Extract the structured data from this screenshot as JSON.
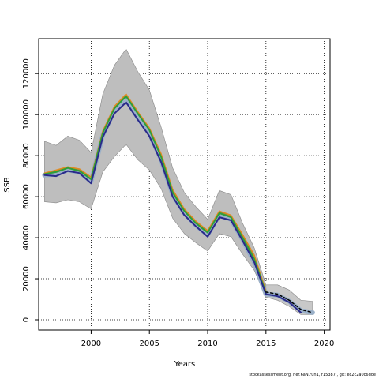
{
  "chart_data": {
    "type": "line",
    "title": "",
    "xlabel": "Years",
    "ylabel": "SSB",
    "xlim": [
      1995.5,
      2020.5
    ],
    "ylim": [
      -5000,
      137000
    ],
    "x_ticks": [
      2000,
      2005,
      2010,
      2015,
      2020
    ],
    "y_ticks": [
      0,
      20000,
      40000,
      60000,
      80000,
      100000,
      120000
    ],
    "grid": true,
    "legend": "none",
    "confidence_band": {
      "x": [
        1996,
        1997,
        1998,
        1999,
        2000,
        2001,
        2002,
        2003,
        2004,
        2005,
        2006,
        2007,
        2008,
        2009,
        2010,
        2011,
        2012,
        2013,
        2014,
        2015
      ],
      "upper": [
        87000,
        85000,
        89500,
        87500,
        81500,
        110000,
        124000,
        132000,
        121000,
        112000,
        94000,
        74000,
        62000,
        55000,
        49000,
        63000,
        61000,
        47000,
        35000,
        17000
      ],
      "lower": [
        57500,
        57000,
        58500,
        57500,
        54000,
        72000,
        79500,
        85500,
        78000,
        73000,
        64000,
        49500,
        42000,
        37500,
        33500,
        42000,
        40500,
        32000,
        24000,
        11000
      ]
    },
    "projection_band": {
      "x": [
        2015,
        2016,
        2017,
        2018,
        2019
      ],
      "upper": [
        17000,
        17000,
        14500,
        9500,
        9000
      ],
      "lower": [
        11000,
        9500,
        6500,
        2500,
        2500
      ]
    },
    "series": [
      {
        "color": "#9ab0c8",
        "width": 6,
        "x": [
          1996,
          1997,
          1998,
          1999,
          2000,
          2001,
          2002,
          2003,
          2004,
          2005,
          2006,
          2007,
          2008,
          2009,
          2010,
          2011,
          2012,
          2013,
          2014,
          2015,
          2016,
          2017,
          2018,
          2019
        ],
        "values": [
          70500,
          71000,
          73000,
          72000,
          67500,
          90000,
          102000,
          107500,
          98500,
          91000,
          78000,
          61000,
          52000,
          46000,
          41500,
          51000,
          49000,
          39000,
          28000,
          12500,
          12000,
          9000,
          4500,
          3500
        ]
      },
      {
        "color": "#8a8a35",
        "x": [
          1996,
          1997,
          1998,
          1999,
          2000,
          2001,
          2002,
          2003,
          2004,
          2005,
          2006,
          2007,
          2008,
          2009,
          2010,
          2011,
          2012,
          2013,
          2014,
          2015
        ],
        "values": [
          71000,
          72500,
          74500,
          73000,
          69500,
          91500,
          103500,
          109500,
          101000,
          93000,
          80500,
          63000,
          53500,
          47500,
          43000,
          52500,
          50500,
          41000,
          31000,
          13500
        ]
      },
      {
        "color": "#e08a20",
        "x": [
          1996,
          1997,
          1998,
          1999,
          2000,
          2001,
          2002,
          2003,
          2004,
          2005,
          2006,
          2007,
          2008,
          2009,
          2010,
          2011,
          2012,
          2013,
          2014,
          2015
        ],
        "values": [
          71500,
          73000,
          74500,
          73500,
          69500,
          92000,
          104000,
          110000,
          101500,
          93500,
          81000,
          63500,
          54000,
          48000,
          43500,
          53000,
          51000,
          41500,
          31500,
          14000
        ]
      },
      {
        "color": "#2e9e3a",
        "width": 2,
        "x": [
          1996,
          1997,
          1998,
          1999,
          2000,
          2001,
          2002,
          2003,
          2004,
          2005,
          2006,
          2007,
          2008,
          2009,
          2010,
          2011,
          2012,
          2013,
          2014,
          2015
        ],
        "values": [
          71000,
          72000,
          74000,
          72500,
          68500,
          91000,
          103000,
          109000,
          100500,
          92500,
          79500,
          62000,
          53000,
          47000,
          42500,
          52000,
          50000,
          40000,
          29500,
          13000
        ]
      },
      {
        "color": "#2a2a8a",
        "width": 2,
        "x": [
          1996,
          1997,
          1998,
          1999,
          2000,
          2001,
          2002,
          2003,
          2004,
          2005,
          2006,
          2007,
          2008,
          2009,
          2010,
          2011,
          2012,
          2013,
          2014,
          2015,
          2016,
          2017,
          2018
        ],
        "values": [
          70500,
          70000,
          72500,
          71500,
          66500,
          89000,
          100500,
          106000,
          97500,
          89500,
          77000,
          60000,
          51000,
          45500,
          40500,
          50000,
          48500,
          38500,
          28000,
          12500,
          11500,
          8500,
          3500
        ]
      },
      {
        "color": "#000000",
        "dashed": true,
        "width": 1.5,
        "x": [
          2015,
          2016,
          2017,
          2018,
          2019
        ],
        "values": [
          13500,
          12500,
          9500,
          5000,
          3500
        ]
      }
    ]
  },
  "footer": "stockassessment.org, her.6aN.run1, r15387 , git: ec2c2a0c6dde"
}
